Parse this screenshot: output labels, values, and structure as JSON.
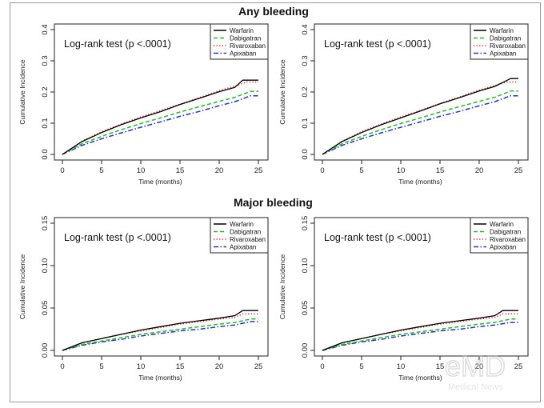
{
  "section_titles": {
    "any": "Any bleeding",
    "major": "Major bleeding"
  },
  "watermark": {
    "logo": "eMD",
    "caption": "Medical News"
  },
  "colors": {
    "Warfarin": "#000000",
    "Dabigatran": "#22bb22",
    "Rivaroxaban": "#e02020",
    "Apixaban": "#2233cc"
  },
  "chart_data": [
    {
      "type": "line",
      "section": "Any bleeding",
      "annotation": "Log-rank test (p <.0001)",
      "xlabel": "Time (months)",
      "ylabel": "Cumulative Incidence",
      "xlim": [
        0,
        25
      ],
      "ylim": [
        0,
        0.4
      ],
      "xticks": [
        "0",
        "5",
        "10",
        "15",
        "20",
        "25"
      ],
      "yticks": [
        "0.0",
        "0.1",
        "0.2",
        "0.3",
        "0.4"
      ],
      "legend": "top-right",
      "series": [
        {
          "name": "Warfarin",
          "style": "solid",
          "x": [
            0,
            2.5,
            5,
            7.5,
            10,
            12.5,
            15,
            17.5,
            20,
            22,
            23,
            25
          ],
          "y": [
            0,
            0.041,
            0.07,
            0.095,
            0.117,
            0.137,
            0.16,
            0.18,
            0.201,
            0.215,
            0.238,
            0.238
          ]
        },
        {
          "name": "Dabigatran",
          "style": "dashed",
          "x": [
            0,
            2.5,
            5,
            7.5,
            10,
            12.5,
            15,
            17.5,
            20,
            22,
            24,
            25
          ],
          "y": [
            0,
            0.034,
            0.058,
            0.079,
            0.099,
            0.117,
            0.136,
            0.153,
            0.17,
            0.183,
            0.202,
            0.202
          ]
        },
        {
          "name": "Rivaroxaban",
          "style": "dotted",
          "x": [
            0,
            2.5,
            5,
            7.5,
            10,
            12.5,
            15,
            17.5,
            20,
            22,
            23.5,
            25
          ],
          "y": [
            0,
            0.042,
            0.073,
            0.097,
            0.12,
            0.14,
            0.161,
            0.182,
            0.204,
            0.219,
            0.232,
            0.232
          ]
        },
        {
          "name": "Apixaban",
          "style": "dashdot",
          "x": [
            0,
            2.5,
            5,
            7.5,
            10,
            12.5,
            15,
            17.5,
            20,
            22,
            24,
            25
          ],
          "y": [
            0,
            0.029,
            0.05,
            0.069,
            0.087,
            0.104,
            0.122,
            0.138,
            0.156,
            0.169,
            0.188,
            0.188
          ]
        }
      ]
    },
    {
      "type": "line",
      "section": "Any bleeding",
      "annotation": "Log-rank test (p <.0001)",
      "xlabel": "Time (months)",
      "ylabel": "Cumulative Incidence",
      "xlim": [
        0,
        25
      ],
      "ylim": [
        0,
        0.4
      ],
      "xticks": [
        "0",
        "5",
        "10",
        "15",
        "20",
        "25"
      ],
      "yticks": [
        "0.0",
        "0.1",
        "0.2",
        "0.3",
        "0.4"
      ],
      "legend": "top-right",
      "series": [
        {
          "name": "Warfarin",
          "style": "solid",
          "x": [
            0,
            2.5,
            5,
            7.5,
            10,
            12.5,
            15,
            17.5,
            20,
            22,
            24,
            25
          ],
          "y": [
            0,
            0.041,
            0.07,
            0.095,
            0.117,
            0.139,
            0.162,
            0.182,
            0.203,
            0.218,
            0.243,
            0.243
          ]
        },
        {
          "name": "Dabigatran",
          "style": "dashed",
          "x": [
            0,
            2.5,
            5,
            7.5,
            10,
            12.5,
            15,
            17.5,
            20,
            22,
            24,
            25
          ],
          "y": [
            0,
            0.034,
            0.058,
            0.079,
            0.099,
            0.117,
            0.136,
            0.153,
            0.17,
            0.183,
            0.203,
            0.203
          ]
        },
        {
          "name": "Rivaroxaban",
          "style": "dotted",
          "x": [
            0,
            2.5,
            5,
            7.5,
            10,
            12.5,
            15,
            17.5,
            20,
            22,
            23.5,
            25
          ],
          "y": [
            0,
            0.042,
            0.073,
            0.097,
            0.12,
            0.141,
            0.163,
            0.184,
            0.206,
            0.221,
            0.232,
            0.232
          ]
        },
        {
          "name": "Apixaban",
          "style": "dashdot",
          "x": [
            0,
            2.5,
            5,
            7.5,
            10,
            12.5,
            15,
            17.5,
            20,
            22,
            24,
            25
          ],
          "y": [
            0,
            0.029,
            0.05,
            0.069,
            0.087,
            0.104,
            0.122,
            0.138,
            0.156,
            0.169,
            0.188,
            0.188
          ]
        }
      ]
    },
    {
      "type": "line",
      "section": "Major bleeding",
      "annotation": "Log-rank test (p <.0001)",
      "xlabel": "Time (months)",
      "ylabel": "Cumulative Incidence",
      "xlim": [
        0,
        25
      ],
      "ylim": [
        0,
        0.15
      ],
      "xticks": [
        "0",
        "5",
        "10",
        "15",
        "20",
        "25"
      ],
      "yticks": [
        "0.00",
        "0.05",
        "0.10",
        "0.15"
      ],
      "legend": "top-right",
      "series": [
        {
          "name": "Warfarin",
          "style": "solid",
          "x": [
            0,
            2.5,
            5,
            7.5,
            10,
            12.5,
            15,
            17.5,
            20,
            22,
            23,
            25
          ],
          "y": [
            0,
            0.009,
            0.014,
            0.019,
            0.024,
            0.028,
            0.032,
            0.035,
            0.038,
            0.041,
            0.047,
            0.047
          ]
        },
        {
          "name": "Dabigatran",
          "style": "dashed",
          "x": [
            0,
            2.5,
            5,
            7.5,
            10,
            12.5,
            15,
            17.5,
            20,
            22,
            24,
            25
          ],
          "y": [
            0,
            0.007,
            0.011,
            0.015,
            0.019,
            0.022,
            0.025,
            0.028,
            0.031,
            0.033,
            0.037,
            0.037
          ]
        },
        {
          "name": "Rivaroxaban",
          "style": "dotted",
          "x": [
            0,
            2.5,
            5,
            7.5,
            10,
            12.5,
            15,
            17.5,
            20,
            22,
            23,
            25
          ],
          "y": [
            0,
            0.009,
            0.014,
            0.019,
            0.023,
            0.027,
            0.031,
            0.034,
            0.037,
            0.039,
            0.043,
            0.043
          ]
        },
        {
          "name": "Apixaban",
          "style": "dashdot",
          "x": [
            0,
            2.5,
            5,
            7.5,
            10,
            12.5,
            15,
            17.5,
            20,
            22,
            24,
            25
          ],
          "y": [
            0,
            0.006,
            0.01,
            0.013,
            0.017,
            0.02,
            0.023,
            0.025,
            0.028,
            0.03,
            0.034,
            0.034
          ]
        }
      ]
    },
    {
      "type": "line",
      "section": "Major bleeding",
      "annotation": "Log-rank test (p <.0001)",
      "xlabel": "Time (months)",
      "ylabel": "Cumulative Incidence",
      "xlim": [
        0,
        25
      ],
      "ylim": [
        0,
        0.15
      ],
      "xticks": [
        "0",
        "5",
        "10",
        "15",
        "20",
        "25"
      ],
      "yticks": [
        "0.00",
        "0.05",
        "0.10",
        "0.15"
      ],
      "legend": "top-right",
      "series": [
        {
          "name": "Warfarin",
          "style": "solid",
          "x": [
            0,
            2.5,
            5,
            7.5,
            10,
            12.5,
            15,
            17.5,
            20,
            22,
            23,
            25
          ],
          "y": [
            0,
            0.009,
            0.014,
            0.019,
            0.024,
            0.028,
            0.032,
            0.035,
            0.038,
            0.041,
            0.047,
            0.047
          ]
        },
        {
          "name": "Dabigatran",
          "style": "dashed",
          "x": [
            0,
            2.5,
            5,
            7.5,
            10,
            12.5,
            15,
            17.5,
            20,
            22,
            24,
            25
          ],
          "y": [
            0,
            0.007,
            0.011,
            0.015,
            0.019,
            0.022,
            0.025,
            0.028,
            0.031,
            0.033,
            0.037,
            0.037
          ]
        },
        {
          "name": "Rivaroxaban",
          "style": "dotted",
          "x": [
            0,
            2.5,
            5,
            7.5,
            10,
            12.5,
            15,
            17.5,
            20,
            22,
            23,
            25
          ],
          "y": [
            0,
            0.009,
            0.014,
            0.019,
            0.023,
            0.027,
            0.031,
            0.034,
            0.037,
            0.039,
            0.043,
            0.043
          ]
        },
        {
          "name": "Apixaban",
          "style": "dashdot",
          "x": [
            0,
            2.5,
            5,
            7.5,
            10,
            12.5,
            15,
            17.5,
            20,
            22,
            24,
            25
          ],
          "y": [
            0,
            0.006,
            0.01,
            0.013,
            0.017,
            0.02,
            0.023,
            0.025,
            0.028,
            0.03,
            0.033,
            0.033
          ]
        }
      ]
    }
  ]
}
